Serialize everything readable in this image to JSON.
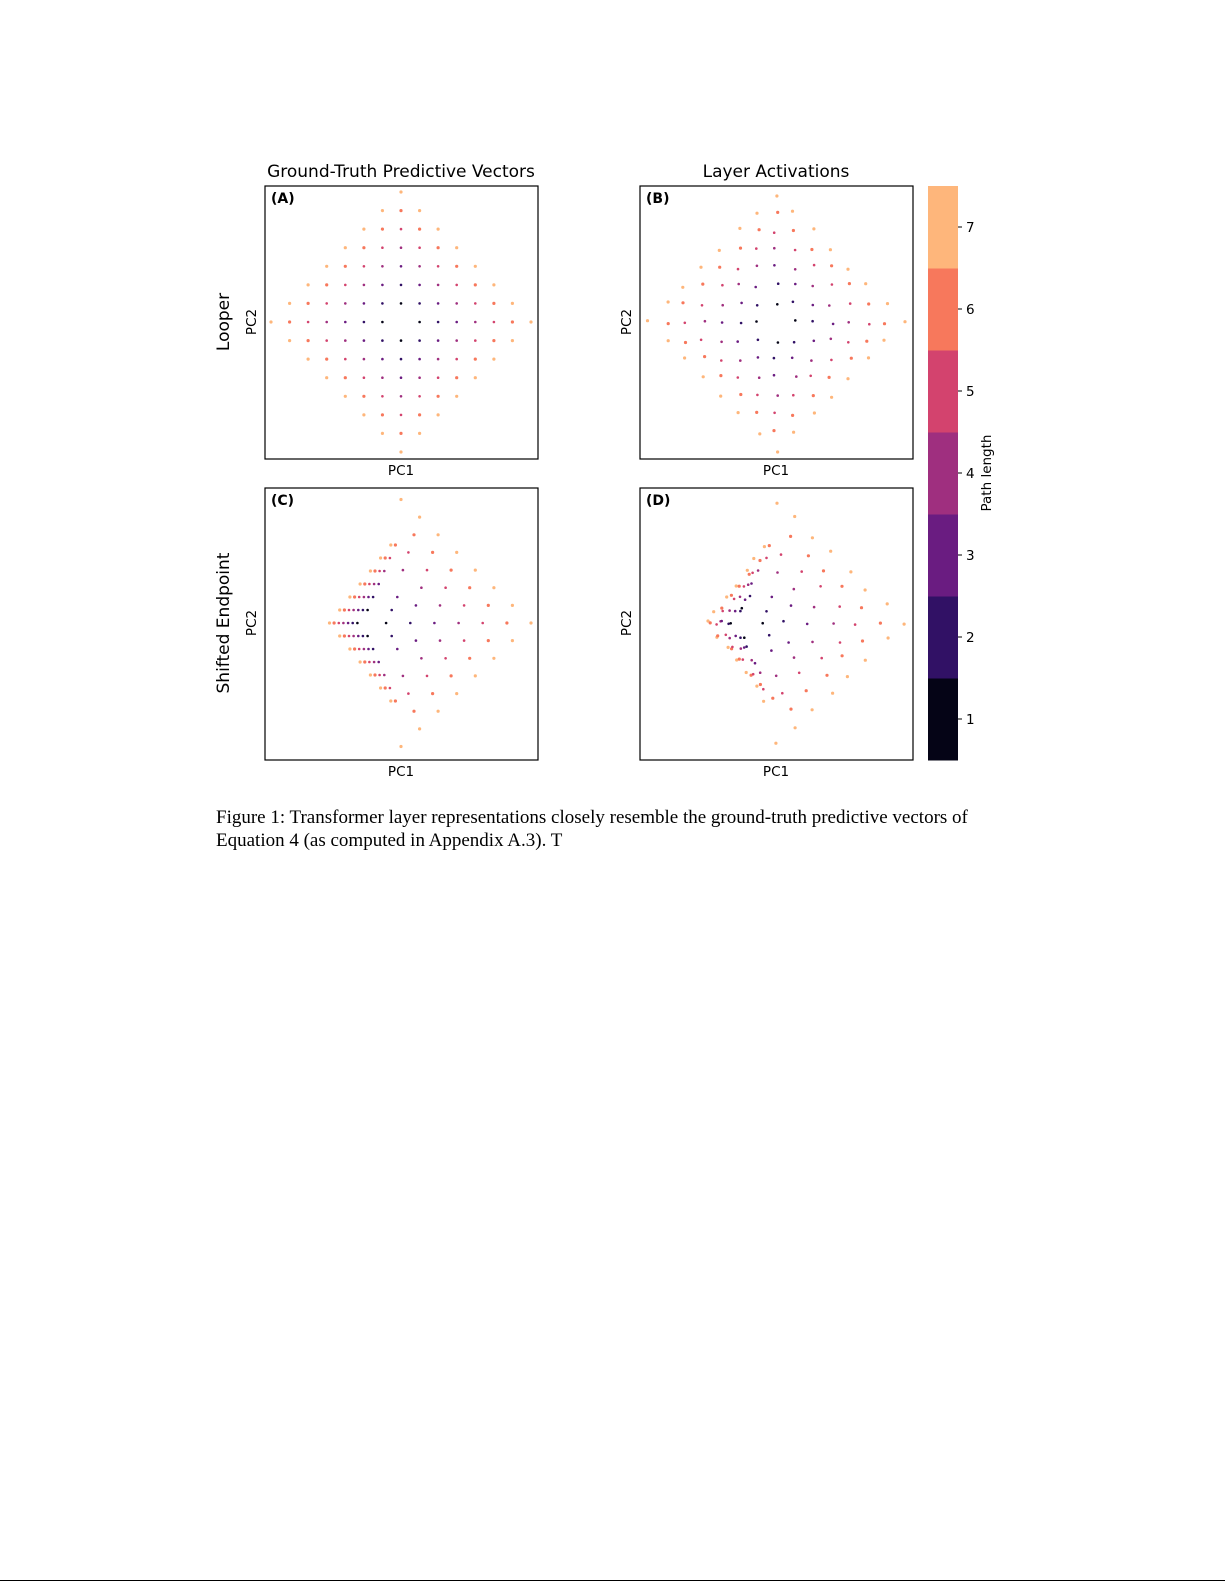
{
  "figure": {
    "column_titles": [
      "Ground-Truth Predictive Vectors",
      "Layer Activations"
    ],
    "row_labels": [
      "Looper",
      "Shifted Endpoint"
    ],
    "colorbar": {
      "label": "Path length",
      "ticks": [
        "1",
        "2",
        "3",
        "4",
        "5",
        "6",
        "7"
      ],
      "colors": [
        "#050416",
        "#311165",
        "#6a1c81",
        "#9f2f7f",
        "#d3436e",
        "#f7785c",
        "#feb67b"
      ]
    }
  },
  "chart_data": [
    {
      "id": "A",
      "type": "scatter",
      "panel_label": "(A)",
      "xlabel": "PC1",
      "ylabel": "PC2",
      "layout": "diamond-centered",
      "values": "path length 1–7, colored by colorbar"
    },
    {
      "id": "B",
      "type": "scatter",
      "panel_label": "(B)",
      "xlabel": "PC1",
      "ylabel": "PC2",
      "layout": "diamond-centered",
      "values": "path length 1–7, colored by colorbar"
    },
    {
      "id": "C",
      "type": "scatter",
      "panel_label": "(C)",
      "xlabel": "PC1",
      "ylabel": "PC2",
      "layout": "diamond-shifted-left",
      "values": "path length 1–7, colored by colorbar"
    },
    {
      "id": "D",
      "type": "scatter",
      "panel_label": "(D)",
      "xlabel": "PC1",
      "ylabel": "PC2",
      "layout": "diamond-shifted-left",
      "values": "path length 1–7, colored by colorbar"
    }
  ],
  "caption": "Figure 1: Transformer layer representations closely resemble the ground-truth predictive vectors of Equation 4 (as computed in Appendix A.3). T"
}
